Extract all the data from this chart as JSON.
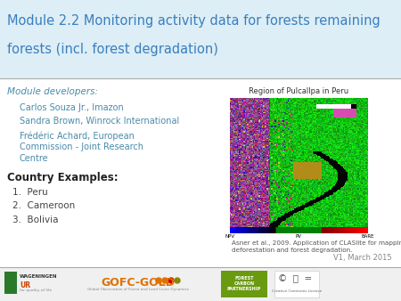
{
  "title_line1": "Module 2.2 Monitoring activity data for forests remaining",
  "title_line2": "forests (incl. forest degradation)",
  "title_color": "#3a7fbf",
  "title_fontsize": 10.5,
  "bg_color": "#ffffff",
  "header_bg": "#ddeef6",
  "divider_color": "#aaaaaa",
  "module_dev_label": "Module developers:",
  "developers": [
    "Carlos Souza Jr., Imazon",
    "Sandra Brown, Winrock International",
    "Frédéric Achard, European\nCommission - Joint Research\nCentre"
  ],
  "country_label": "Country Examples:",
  "countries": [
    "Peru",
    "Cameroon",
    "Bolivia"
  ],
  "image_caption_title": "Region of Pulcallpa in Peru",
  "image_caption": "Asner et al., 2009. Application of CLASlite for mapping\ndeforestation and forest degradation.",
  "version": "V1, March 2015",
  "footer_text": "Creative Commons License",
  "dev_text_color": "#4a8aaa",
  "country_item_color": "#444444",
  "footer_bg": "#f0f0f0"
}
